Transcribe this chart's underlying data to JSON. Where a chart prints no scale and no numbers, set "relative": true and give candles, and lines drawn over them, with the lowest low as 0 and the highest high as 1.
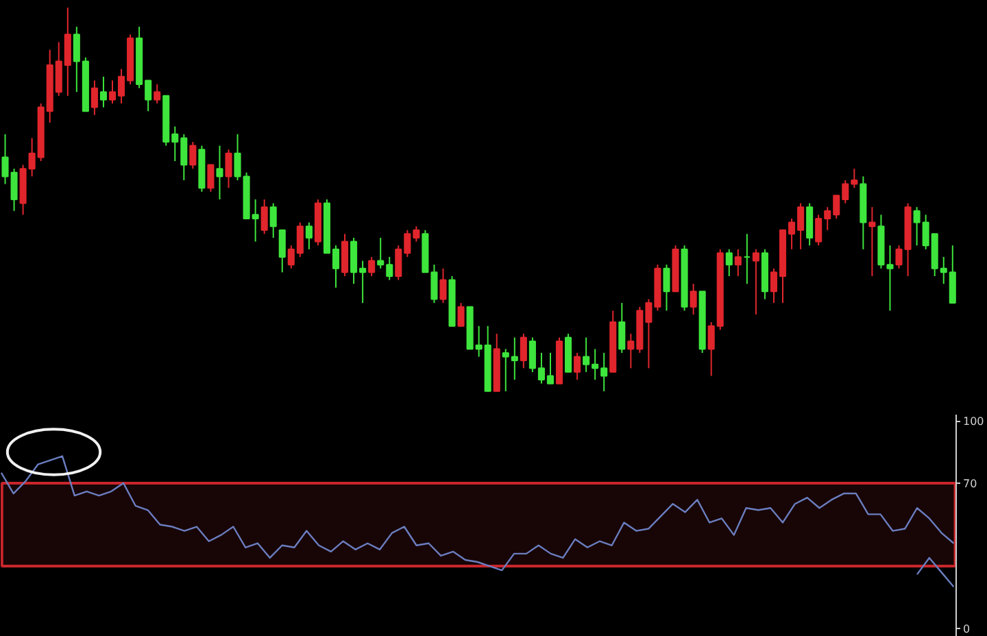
{
  "chart_data": [
    {
      "type": "candlestick",
      "relative": true,
      "grid": false,
      "categories": [
        null,
        null,
        null,
        null,
        null,
        null,
        null,
        null,
        null,
        null,
        null,
        null,
        null,
        null,
        null,
        null,
        null,
        null,
        null,
        null,
        null,
        null,
        null,
        null,
        null,
        null,
        null,
        null,
        null,
        null,
        null,
        null,
        null,
        null,
        null,
        null,
        null,
        null,
        null,
        null,
        null,
        null,
        null,
        null,
        null,
        null,
        null,
        null,
        null,
        null,
        null,
        null,
        null,
        null,
        null,
        null,
        null,
        null,
        null,
        null,
        null,
        null,
        null,
        null,
        null,
        null,
        null,
        null,
        null,
        null,
        null,
        null,
        null,
        null,
        null,
        null,
        null,
        null,
        null,
        null,
        null,
        null,
        null,
        null,
        null,
        null,
        null,
        null,
        null,
        null,
        null,
        null,
        null,
        null,
        null,
        null,
        null,
        null,
        null,
        null,
        null,
        null,
        null,
        null,
        null,
        null,
        null
      ],
      "ohlc": [
        [
          0.61,
          0.67,
          0.54,
          0.56
        ],
        [
          0.57,
          0.58,
          0.47,
          0.5
        ],
        [
          0.49,
          0.59,
          0.46,
          0.58
        ],
        [
          0.58,
          0.66,
          0.56,
          0.62
        ],
        [
          0.61,
          0.75,
          0.6,
          0.74
        ],
        [
          0.73,
          0.89,
          0.7,
          0.85
        ],
        [
          0.78,
          0.91,
          0.77,
          0.86
        ],
        [
          0.85,
          1.0,
          0.77,
          0.93
        ],
        [
          0.93,
          0.95,
          0.78,
          0.86
        ],
        [
          0.86,
          0.87,
          0.73,
          0.73
        ],
        [
          0.74,
          0.81,
          0.72,
          0.79
        ],
        [
          0.78,
          0.82,
          0.74,
          0.76
        ],
        [
          0.76,
          0.81,
          0.75,
          0.78
        ],
        [
          0.77,
          0.84,
          0.75,
          0.82
        ],
        [
          0.81,
          0.93,
          0.8,
          0.92
        ],
        [
          0.92,
          0.95,
          0.79,
          0.8
        ],
        [
          0.81,
          0.81,
          0.73,
          0.76
        ],
        [
          0.76,
          0.8,
          0.75,
          0.78
        ],
        [
          0.77,
          0.77,
          0.64,
          0.65
        ],
        [
          0.67,
          0.69,
          0.6,
          0.65
        ],
        [
          0.66,
          0.67,
          0.55,
          0.59
        ],
        [
          0.59,
          0.65,
          0.58,
          0.64
        ],
        [
          0.63,
          0.64,
          0.52,
          0.53
        ],
        [
          0.53,
          0.59,
          0.52,
          0.59
        ],
        [
          0.58,
          0.64,
          0.5,
          0.56
        ],
        [
          0.56,
          0.63,
          0.53,
          0.62
        ],
        [
          0.62,
          0.67,
          0.55,
          0.56
        ],
        [
          0.56,
          0.57,
          0.45,
          0.45
        ],
        [
          0.46,
          0.5,
          0.39,
          0.45
        ],
        [
          0.42,
          0.5,
          0.41,
          0.48
        ],
        [
          0.48,
          0.49,
          0.4,
          0.43
        ],
        [
          0.42,
          0.42,
          0.31,
          0.35
        ],
        [
          0.33,
          0.38,
          0.32,
          0.37
        ],
        [
          0.36,
          0.44,
          0.35,
          0.43
        ],
        [
          0.43,
          0.44,
          0.37,
          0.4
        ],
        [
          0.39,
          0.5,
          0.38,
          0.49
        ],
        [
          0.49,
          0.5,
          0.36,
          0.36
        ],
        [
          0.37,
          0.38,
          0.27,
          0.32
        ],
        [
          0.31,
          0.41,
          0.3,
          0.39
        ],
        [
          0.39,
          0.4,
          0.28,
          0.31
        ],
        [
          0.32,
          0.34,
          0.23,
          0.31
        ],
        [
          0.31,
          0.35,
          0.3,
          0.34
        ],
        [
          0.34,
          0.4,
          0.32,
          0.33
        ],
        [
          0.33,
          0.35,
          0.29,
          0.3
        ],
        [
          0.3,
          0.38,
          0.29,
          0.37
        ],
        [
          0.36,
          0.42,
          0.35,
          0.41
        ],
        [
          0.4,
          0.43,
          0.39,
          0.42
        ],
        [
          0.41,
          0.42,
          0.31,
          0.31
        ],
        [
          0.31,
          0.33,
          0.23,
          0.24
        ],
        [
          0.24,
          0.32,
          0.23,
          0.29
        ],
        [
          0.29,
          0.3,
          0.17,
          0.17
        ],
        [
          0.17,
          0.23,
          0.17,
          0.22
        ],
        [
          0.22,
          0.22,
          0.11,
          0.11
        ],
        [
          0.12,
          0.17,
          0.09,
          0.11
        ],
        [
          0.12,
          0.17,
          0.0,
          0.0
        ],
        [
          0.0,
          0.15,
          0.0,
          0.11
        ],
        [
          0.1,
          0.11,
          0.0,
          0.09
        ],
        [
          0.09,
          0.14,
          0.03,
          0.08
        ],
        [
          0.08,
          0.15,
          0.06,
          0.14
        ],
        [
          0.13,
          0.14,
          0.05,
          0.06
        ],
        [
          0.06,
          0.1,
          0.02,
          0.03
        ],
        [
          0.04,
          0.1,
          0.02,
          0.02
        ],
        [
          0.02,
          0.14,
          0.02,
          0.13
        ],
        [
          0.14,
          0.15,
          0.05,
          0.05
        ],
        [
          0.05,
          0.1,
          0.03,
          0.09
        ],
        [
          0.09,
          0.14,
          0.05,
          0.07
        ],
        [
          0.07,
          0.11,
          0.03,
          0.06
        ],
        [
          0.06,
          0.1,
          0.0,
          0.04
        ],
        [
          0.05,
          0.21,
          0.05,
          0.18
        ],
        [
          0.18,
          0.23,
          0.1,
          0.11
        ],
        [
          0.11,
          0.15,
          0.06,
          0.13
        ],
        [
          0.11,
          0.22,
          0.1,
          0.21
        ],
        [
          0.18,
          0.24,
          0.06,
          0.23
        ],
        [
          0.22,
          0.33,
          0.21,
          0.32
        ],
        [
          0.32,
          0.33,
          0.21,
          0.26
        ],
        [
          0.26,
          0.38,
          0.26,
          0.37
        ],
        [
          0.37,
          0.38,
          0.21,
          0.22
        ],
        [
          0.22,
          0.28,
          0.2,
          0.26
        ],
        [
          0.26,
          0.26,
          0.1,
          0.11
        ],
        [
          0.11,
          0.18,
          0.04,
          0.17
        ],
        [
          0.17,
          0.37,
          0.16,
          0.36
        ],
        [
          0.36,
          0.37,
          0.3,
          0.33
        ],
        [
          0.33,
          0.37,
          0.3,
          0.35
        ],
        [
          0.35,
          0.41,
          0.28,
          0.35
        ],
        [
          0.34,
          0.37,
          0.2,
          0.36
        ],
        [
          0.36,
          0.37,
          0.24,
          0.26
        ],
        [
          0.26,
          0.32,
          0.23,
          0.31
        ],
        [
          0.3,
          0.42,
          0.23,
          0.42
        ],
        [
          0.41,
          0.45,
          0.37,
          0.44
        ],
        [
          0.42,
          0.49,
          0.37,
          0.48
        ],
        [
          0.48,
          0.49,
          0.38,
          0.4
        ],
        [
          0.39,
          0.46,
          0.38,
          0.45
        ],
        [
          0.45,
          0.48,
          0.42,
          0.47
        ],
        [
          0.46,
          0.51,
          0.45,
          0.51
        ],
        [
          0.5,
          0.55,
          0.49,
          0.54
        ],
        [
          0.54,
          0.58,
          0.53,
          0.55
        ],
        [
          0.54,
          0.56,
          0.37,
          0.44
        ],
        [
          0.43,
          0.48,
          0.3,
          0.44
        ],
        [
          0.43,
          0.46,
          0.32,
          0.33
        ],
        [
          0.33,
          0.38,
          0.21,
          0.32
        ],
        [
          0.33,
          0.38,
          0.32,
          0.37
        ],
        [
          0.37,
          0.49,
          0.3,
          0.48
        ],
        [
          0.47,
          0.48,
          0.38,
          0.44
        ],
        [
          0.44,
          0.46,
          0.37,
          0.38
        ],
        [
          0.41,
          0.41,
          0.3,
          0.32
        ],
        [
          0.32,
          0.35,
          0.28,
          0.31
        ],
        [
          0.31,
          0.38,
          0.23,
          0.23
        ]
      ],
      "colors": [
        "#3ee53c",
        "#3ee53c",
        "#e0262c",
        "#e0262c",
        "#e0262c",
        "#e0262c",
        "#e0262c",
        "#e0262c",
        "#3ee53c",
        "#3ee53c",
        "#e0262c",
        "#3ee53c",
        "#e0262c",
        "#e0262c",
        "#e0262c",
        "#3ee53c",
        "#3ee53c",
        "#e0262c",
        "#3ee53c",
        "#3ee53c",
        "#3ee53c",
        "#e0262c",
        "#3ee53c",
        "#e0262c",
        "#3ee53c",
        "#e0262c",
        "#3ee53c",
        "#3ee53c",
        "#3ee53c",
        "#e0262c",
        "#3ee53c",
        "#3ee53c",
        "#e0262c",
        "#e0262c",
        "#3ee53c",
        "#e0262c",
        "#3ee53c",
        "#3ee53c",
        "#e0262c",
        "#3ee53c",
        "#3ee53c",
        "#e0262c",
        "#3ee53c",
        "#3ee53c",
        "#e0262c",
        "#e0262c",
        "#e0262c",
        "#3ee53c",
        "#3ee53c",
        "#e0262c",
        "#3ee53c",
        "#e0262c",
        "#3ee53c",
        "#3ee53c",
        "#3ee53c",
        "#e0262c",
        "#3ee53c",
        "#3ee53c",
        "#e0262c",
        "#3ee53c",
        "#3ee53c",
        "#3ee53c",
        "#e0262c",
        "#3ee53c",
        "#e0262c",
        "#3ee53c",
        "#3ee53c",
        "#3ee53c",
        "#e0262c",
        "#3ee53c",
        "#e0262c",
        "#e0262c",
        "#e0262c",
        "#e0262c",
        "#3ee53c",
        "#e0262c",
        "#3ee53c",
        "#e0262c",
        "#3ee53c",
        "#e0262c",
        "#e0262c",
        "#3ee53c",
        "#e0262c",
        "#3ee53c",
        "#e0262c",
        "#3ee53c",
        "#e0262c",
        "#e0262c",
        "#e0262c",
        "#e0262c",
        "#3ee53c",
        "#e0262c",
        "#e0262c",
        "#e0262c",
        "#e0262c",
        "#e0262c",
        "#3ee53c",
        "#e0262c",
        "#3ee53c",
        "#3ee53c",
        "#e0262c",
        "#e0262c",
        "#3ee53c",
        "#3ee53c",
        "#3ee53c",
        "#3ee53c",
        "#3ee53c"
      ]
    },
    {
      "type": "line",
      "grid": false,
      "tick_labels": "y",
      "ylim": [
        -4,
        103
      ],
      "yticks": [
        0,
        70,
        100
      ],
      "categories": [
        null,
        null,
        null,
        null,
        null,
        null,
        null,
        null,
        null,
        null,
        null,
        null,
        null,
        null,
        null,
        null,
        null,
        null,
        null,
        null,
        null,
        null,
        null,
        null,
        null,
        null,
        null,
        null,
        null,
        null,
        null,
        null,
        null,
        null,
        null,
        null,
        null,
        null,
        null,
        null,
        null,
        null,
        null,
        null,
        null,
        null,
        null,
        null,
        null,
        null,
        null,
        null,
        null,
        null,
        null,
        null,
        null,
        null,
        null,
        null,
        null,
        null,
        null,
        null,
        null,
        null,
        null,
        null,
        null,
        null,
        null,
        null,
        null,
        null,
        null,
        null,
        null,
        null,
        null
      ],
      "series": [
        {
          "color": "#6a7ec0",
          "values": [
            75,
            65,
            71,
            79,
            81,
            83,
            64,
            66,
            64,
            66,
            70,
            59,
            57,
            50,
            49,
            47,
            49,
            42,
            45,
            49,
            39,
            41,
            34,
            40,
            39,
            47,
            40,
            37,
            42,
            38,
            41,
            38,
            46,
            49,
            40,
            41,
            35,
            37,
            33,
            32,
            30,
            28,
            36,
            36,
            40,
            36,
            34,
            43,
            39,
            42,
            40,
            51,
            47,
            48,
            54,
            60,
            56,
            62,
            51,
            53,
            45,
            58,
            57,
            58,
            51,
            60,
            63,
            58,
            62,
            65,
            65,
            55,
            55,
            47,
            48,
            58,
            53,
            46,
            41
          ]
        },
        {
          "color": "#6a7ec0",
          "values": [
            null,
            null,
            null,
            null,
            null,
            null,
            null,
            null,
            null,
            null,
            null,
            null,
            null,
            null,
            null,
            null,
            null,
            null,
            null,
            null,
            null,
            null,
            null,
            null,
            null,
            null,
            null,
            null,
            null,
            null,
            null,
            null,
            null,
            null,
            null,
            null,
            null,
            null,
            null,
            null,
            null,
            null,
            null,
            null,
            null,
            null,
            null,
            null,
            null,
            null,
            null,
            null,
            null,
            null,
            null,
            null,
            null,
            null,
            null,
            null,
            null,
            null,
            null,
            null,
            null,
            null,
            null,
            null,
            null,
            null,
            null,
            null,
            null,
            null,
            null,
            26,
            34,
            27,
            20
          ]
        }
      ],
      "bands": [
        {
          "axis": "y",
          "from": 30,
          "to": 70,
          "color": "#c8262c"
        }
      ]
    }
  ]
}
